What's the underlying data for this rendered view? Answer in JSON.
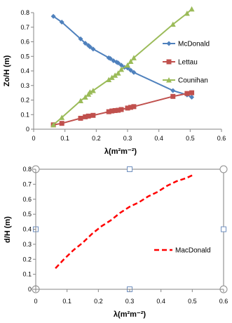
{
  "chart_data": [
    {
      "type": "line",
      "title": "",
      "xlabel": "λ(m²m⁻²)",
      "ylabel": "Zo/H (m)",
      "xlim": [
        0,
        0.6
      ],
      "ylim": [
        0,
        0.8
      ],
      "xticks": [
        "0",
        "0.1",
        "0.2",
        "0.3",
        "0.4",
        "0.5",
        "0.6"
      ],
      "yticks": [
        "0",
        "0.1",
        "0.2",
        "0.3",
        "0.4",
        "0.5",
        "0.6",
        "0.7",
        "0.8"
      ],
      "grid": false,
      "legend": "right",
      "series": [
        {
          "name": "McDonald",
          "color": "#4f81bd",
          "marker": "diamond",
          "x": [
            0.063,
            0.09,
            0.15,
            0.165,
            0.175,
            0.18,
            0.19,
            0.24,
            0.245,
            0.255,
            0.265,
            0.27,
            0.28,
            0.29,
            0.3,
            0.31,
            0.32,
            0.445,
            0.49,
            0.505
          ],
          "y": [
            0.775,
            0.735,
            0.62,
            0.59,
            0.575,
            0.565,
            0.55,
            0.49,
            0.485,
            0.47,
            0.46,
            0.455,
            0.44,
            0.425,
            0.42,
            0.405,
            0.39,
            0.265,
            0.235,
            0.22
          ]
        },
        {
          "name": "Lettau",
          "color": "#c0504d",
          "marker": "square",
          "x": [
            0.063,
            0.09,
            0.15,
            0.165,
            0.175,
            0.19,
            0.24,
            0.25,
            0.26,
            0.27,
            0.28,
            0.3,
            0.31,
            0.32,
            0.445,
            0.49,
            0.505
          ],
          "y": [
            0.03,
            0.04,
            0.075,
            0.085,
            0.09,
            0.095,
            0.12,
            0.125,
            0.128,
            0.13,
            0.135,
            0.145,
            0.15,
            0.155,
            0.225,
            0.245,
            0.25
          ]
        },
        {
          "name": "Counihan",
          "color": "#9bbb59",
          "marker": "triangle",
          "x": [
            0.063,
            0.09,
            0.15,
            0.165,
            0.175,
            0.18,
            0.19,
            0.24,
            0.25,
            0.26,
            0.27,
            0.28,
            0.3,
            0.31,
            0.32,
            0.445,
            0.49,
            0.505
          ],
          "y": [
            0.03,
            0.08,
            0.195,
            0.22,
            0.24,
            0.255,
            0.265,
            0.34,
            0.355,
            0.37,
            0.385,
            0.41,
            0.44,
            0.465,
            0.49,
            0.72,
            0.795,
            0.825
          ]
        }
      ]
    },
    {
      "type": "line",
      "title": "",
      "xlabel": "λ(m²m⁻²)",
      "ylabel": "d/H (m)",
      "xlim": [
        0,
        0.6
      ],
      "ylim": [
        0,
        0.8
      ],
      "xticks": [
        "0",
        "0.1",
        "0.2",
        "0.3",
        "0.4",
        "0.5",
        "0.6"
      ],
      "yticks": [
        "0",
        "0.1",
        "0.2",
        "0.3",
        "0.4",
        "0.5",
        "0.6",
        "0.7",
        "0.8"
      ],
      "grid": false,
      "legend": "right",
      "series": [
        {
          "name": "MacDonald",
          "color": "#ff0000",
          "dashed": true,
          "x": [
            0.063,
            0.09,
            0.12,
            0.15,
            0.18,
            0.21,
            0.24,
            0.27,
            0.3,
            0.33,
            0.36,
            0.39,
            0.42,
            0.45,
            0.48,
            0.5
          ],
          "y": [
            0.14,
            0.2,
            0.26,
            0.31,
            0.37,
            0.42,
            0.46,
            0.51,
            0.55,
            0.58,
            0.62,
            0.65,
            0.69,
            0.72,
            0.74,
            0.76
          ]
        }
      ]
    }
  ]
}
